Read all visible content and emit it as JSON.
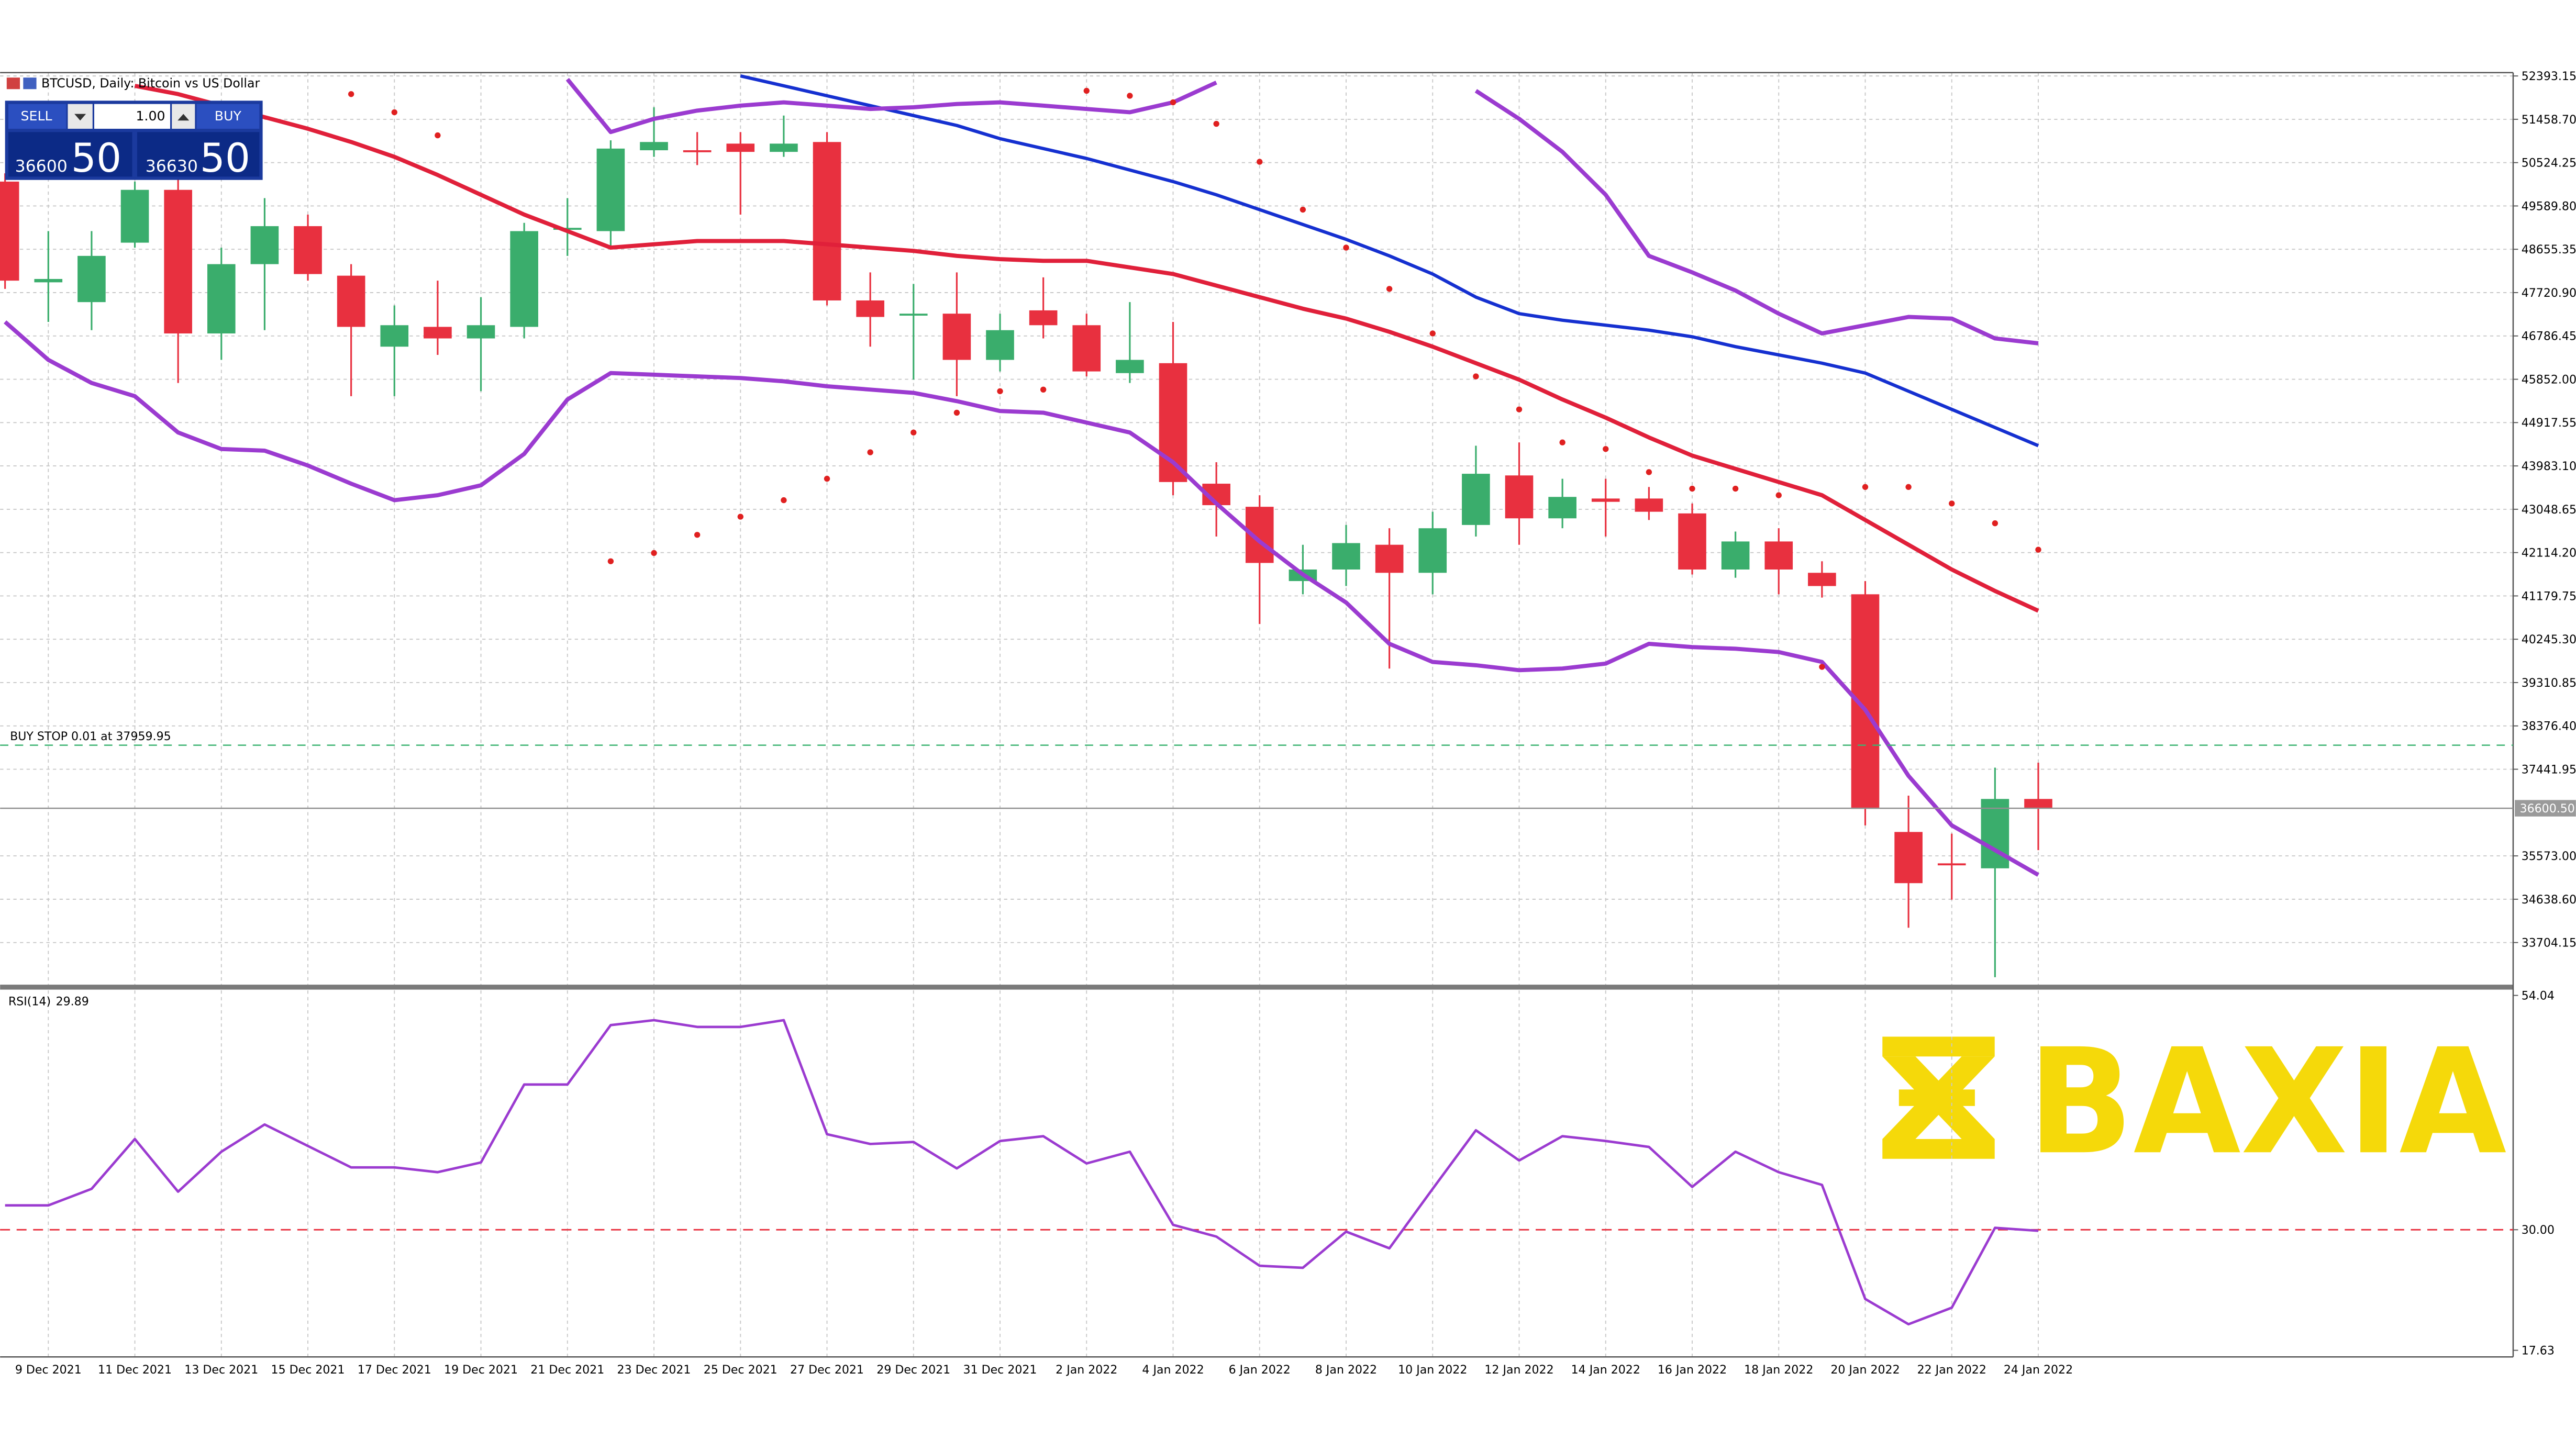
{
  "header": {
    "title": "BTCUSD, Daily: Bitcoin vs US Dollar"
  },
  "trade_panel": {
    "sell": "SELL",
    "buy": "BUY",
    "volume": "1.00",
    "bid": {
      "main": "36600",
      "big": "50"
    },
    "ask": {
      "main": "36630",
      "big": "50"
    }
  },
  "watermark": "BAXIA",
  "chart_data": [
    {
      "type": "candlestick",
      "categories": [
        null,
        "9 Dec 2021",
        null,
        "11 Dec 2021",
        null,
        "13 Dec 2021",
        null,
        "15 Dec 2021",
        null,
        "17 Dec 2021",
        null,
        "19 Dec 2021",
        null,
        "21 Dec 2021",
        null,
        "23 Dec 2021",
        null,
        "25 Dec 2021",
        null,
        "27 Dec 2021",
        null,
        "29 Dec 2021",
        null,
        "31 Dec 2021",
        null,
        "2 Jan 2022",
        null,
        "4 Jan 2022",
        null,
        "6 Jan 2022",
        null,
        "8 Jan 2022",
        null,
        "10 Jan 2022",
        null,
        "12 Jan 2022",
        null,
        "14 Jan 2022",
        null,
        "16 Jan 2022",
        null,
        "18 Jan 2022",
        null,
        "20 Jan 2022",
        null,
        "22 Jan 2022",
        null,
        "24 Jan 2022"
      ],
      "open": [
        50115,
        47943,
        47516,
        48798,
        49937,
        46840,
        48335,
        49154,
        48086,
        46555,
        46982,
        46733,
        46982,
        49083,
        49047,
        50791,
        50791,
        50934,
        50756,
        50969,
        47552,
        47231,
        47267,
        46270,
        47338,
        47018,
        45985,
        46199,
        43600,
        43102,
        41500,
        41749,
        42283,
        41678,
        42710,
        43778,
        42853,
        43280,
        43280,
        42959,
        41749,
        42354,
        41678,
        41215,
        36089,
        35412,
        35305,
        36801
      ],
      "high": [
        50293,
        49047,
        49047,
        50115,
        50293,
        48691,
        49759,
        49403,
        48335,
        47445,
        47979,
        47623,
        49225,
        49759,
        51005,
        51717,
        51183,
        51183,
        51539,
        51183,
        48157,
        47908,
        48157,
        47267,
        48050,
        47267,
        47516,
        47089,
        44063,
        43351,
        42283,
        42710,
        42639,
        42995,
        44419,
        44490,
        43707,
        43707,
        43529,
        43173,
        42568,
        42639,
        41927,
        41500,
        36872,
        36053,
        37477,
        37584
      ],
      "low": [
        47801,
        47089,
        46911,
        48691,
        45772,
        46270,
        46911,
        47979,
        45487,
        45487,
        46377,
        45594,
        46733,
        48513,
        48691,
        50649,
        50471,
        49403,
        50649,
        47445,
        46555,
        45843,
        45487,
        46021,
        46733,
        45914,
        45772,
        43351,
        42461,
        40574,
        41215,
        41393,
        39613,
        41215,
        42461,
        42283,
        42639,
        42461,
        42817,
        41642,
        41571,
        41215,
        41144,
        36231,
        34024,
        34629,
        32956,
        35697
      ],
      "close": [
        47979,
        48015,
        48513,
        49937,
        46840,
        48335,
        49154,
        48121,
        46982,
        47018,
        46733,
        47018,
        49047,
        49118,
        50827,
        50969,
        50756,
        50756,
        50934,
        47552,
        47196,
        47267,
        46270,
        46911,
        47018,
        46021,
        46270,
        43636,
        43137,
        41891,
        41749,
        42319,
        41678,
        42639,
        43814,
        42853,
        43315,
        43209,
        42995,
        41749,
        42354,
        41749,
        41393,
        36587,
        34985,
        35377,
        36801,
        36600.5
      ],
      "up_color": "#3aad6c",
      "down_color": "#e8303f",
      "lines": [
        {
          "color": "#e0203a",
          "width": 2.5,
          "values": [
            null,
            null,
            null,
            52180,
            52002,
            51753,
            51503,
            51254,
            50969,
            50649,
            50257,
            49830,
            49403,
            49047,
            48691,
            48762,
            48833,
            48833,
            48833,
            48762,
            48691,
            48620,
            48513,
            48442,
            48406,
            48406,
            48264,
            48121,
            47872,
            47623,
            47374,
            47160,
            46875,
            46555,
            46199,
            45843,
            45416,
            45024,
            44597,
            44205,
            43921,
            43636,
            43351,
            42817,
            42283,
            41749,
            41286,
            40859
          ]
        },
        {
          "color": "#1530d0",
          "width": 2,
          "values": [
            null,
            null,
            null,
            null,
            null,
            null,
            null,
            null,
            null,
            null,
            null,
            null,
            null,
            null,
            null,
            null,
            null,
            52393,
            52180,
            51966,
            51753,
            51539,
            51325,
            51041,
            50827,
            50613,
            50364,
            50115,
            49830,
            49510,
            49189,
            48869,
            48513,
            48121,
            47623,
            47267,
            47125,
            47018,
            46911,
            46769,
            46555,
            46377,
            46199,
            45985,
            45594,
            45202,
            44811,
            44419
          ]
        },
        {
          "color": "#9b3bd0",
          "width": 2.5,
          "values": [
            47089,
            46270,
            45772,
            45487,
            44704,
            44348,
            44312,
            43992,
            43600,
            43244,
            43351,
            43565,
            44241,
            45416,
            45985,
            45950,
            45914,
            45879,
            45807,
            45701,
            45629,
            45558,
            45380,
            45167,
            45131,
            44917,
            44704,
            44063,
            43173,
            42354,
            41642,
            41037,
            40147,
            39755,
            39684,
            39577,
            39613,
            39720,
            40147,
            40076,
            40040,
            39969,
            39755,
            38723,
            37299,
            36231,
            35697,
            35163
          ]
        },
        {
          "color": "#9b3bd0",
          "width": 2.5,
          "values": [
            null,
            null,
            null,
            null,
            null,
            null,
            null,
            null,
            null,
            null,
            null,
            null,
            null,
            52322,
            51183,
            51468,
            51646,
            51753,
            51824,
            51753,
            51681,
            51717,
            51788,
            51824,
            51753,
            51681,
            51610,
            51824,
            52251,
            null,
            null,
            null,
            null,
            null,
            52073,
            51468,
            50756,
            49830,
            48513,
            48157,
            47765,
            47267,
            46840,
            47018,
            47196,
            47160,
            46733,
            46626
          ]
        }
      ],
      "dots": {
        "color": "#e02020",
        "values": [
          null,
          null,
          null,
          null,
          null,
          null,
          null,
          null,
          52002,
          51610,
          51112,
          null,
          null,
          null,
          41927,
          42105,
          42497,
          42888,
          43244,
          43707,
          44277,
          44704,
          45131,
          45594,
          45629,
          52073,
          51966,
          51824,
          51361,
          50542,
          49510,
          48691,
          47801,
          46840,
          45914,
          45202,
          44490,
          44348,
          43849,
          43493,
          43493,
          43351,
          39649,
          43529,
          43529,
          43173,
          42746,
          42176
        ]
      },
      "orders": [
        {
          "label": "BUY STOP 0.01 at 37959.95",
          "price": 37959.95
        }
      ],
      "last_price": {
        "value": 36600.5,
        "label": "36600.50"
      },
      "ylim": [
        32778,
        52465
      ],
      "yticks": [
        52393.15,
        {
          "value": 51458.7,
          "label": "51458.70"
        },
        50524.25,
        {
          "value": 49589.8,
          "label": "49589.80"
        },
        48655.35,
        {
          "value": 47720.9,
          "label": "47720.90"
        },
        46786.45,
        {
          "value": 45852,
          "label": "45852.00"
        },
        44917.55,
        {
          "value": 43983.1,
          "label": "43983.10"
        },
        43048.65,
        {
          "value": 42114.2,
          "label": "42114.20"
        },
        41179.75,
        {
          "value": 40245.3,
          "label": "40245.30"
        },
        39310.85,
        {
          "value": 38376.4,
          "label": "38376.40"
        },
        37441.95,
        {
          "value": 35573,
          "label": "35573.00"
        },
        {
          "value": 34638.6,
          "label": "34638.60"
        },
        33704.15
      ],
      "grid": true
    },
    {
      "type": "line",
      "label": "RSI(14)",
      "color": "#9b3bd0",
      "values": [
        32.5,
        32.5,
        34.2,
        39.3,
        33.9,
        38.0,
        40.8,
        38.6,
        36.4,
        36.4,
        35.9,
        36.9,
        44.9,
        44.9,
        51.0,
        51.5,
        50.8,
        50.8,
        51.5,
        39.8,
        38.8,
        39.0,
        36.3,
        39.1,
        39.6,
        36.8,
        38.0,
        30.5,
        29.3,
        26.3,
        26.1,
        29.8,
        28.1,
        34.2,
        40.2,
        37.1,
        39.6,
        39.1,
        38.5,
        34.4,
        38.0,
        35.9,
        34.6,
        22.9,
        20.3,
        22.0,
        30.2,
        29.89
      ],
      "levels": [
        30
      ],
      "level_color": "#e8303f",
      "ylim": [
        17.63,
        54.04
      ],
      "yticks": [
        54.04,
        {
          "value": 30,
          "label": "30.00"
        },
        17.63
      ]
    }
  ]
}
